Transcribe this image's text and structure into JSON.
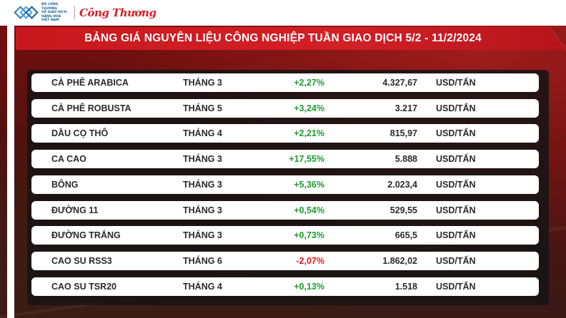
{
  "header": {
    "logo_small_text": "BỘ CÔNG THƯƠNG\nSỞ GIAO DỊCH\nHÀNG HÓA\nVIỆT NAM",
    "brand": "Công Thương"
  },
  "title": "BẢNG GIÁ NGUYÊN LIỆU CÔNG NGHIỆP TUẦN GIAO DỊCH 5/2 - 11/2/2024",
  "colors": {
    "accent_red": "#d32027",
    "positive_green": "#1e9a2e",
    "negative_red": "#e01b1b"
  },
  "rows": [
    {
      "name": "CÀ PHÊ ARABICA",
      "month": "THÁNG 3",
      "change": "+2,27%",
      "price": "4.327,67",
      "unit": "USD/TẤN",
      "direction": "pos"
    },
    {
      "name": "CÀ PHÊ ROBUSTA",
      "month": "THÁNG 5",
      "change": "+3,24%",
      "price": "3.217",
      "unit": "USD/TẤN",
      "direction": "pos"
    },
    {
      "name": "DẦU CỌ THÔ",
      "month": "THÁNG 4",
      "change": "+2,21%",
      "price": "815,97",
      "unit": "USD/TẤN",
      "direction": "pos"
    },
    {
      "name": "CA CAO",
      "month": "THÁNG 3",
      "change": "+17,55%",
      "price": "5.888",
      "unit": "USD/TẤN",
      "direction": "pos"
    },
    {
      "name": "BÔNG",
      "month": "THÁNG 3",
      "change": "+5,36%",
      "price": "2.023,4",
      "unit": "USD/TẤN",
      "direction": "pos"
    },
    {
      "name": "ĐƯỜNG 11",
      "month": "THÁNG 3",
      "change": "+0,54%",
      "price": "529,55",
      "unit": "USD/TẤN",
      "direction": "pos"
    },
    {
      "name": "ĐƯỜNG TRẮNG",
      "month": "THÁNG 3",
      "change": "+0,73%",
      "price": "665,5",
      "unit": "USD/TẤN",
      "direction": "pos"
    },
    {
      "name": "CAO SU RSS3",
      "month": "THÁNG 6",
      "change": "-2,07%",
      "price": "1.862,02",
      "unit": "USD/TẤN",
      "direction": "neg"
    },
    {
      "name": "CAO SU TSR20",
      "month": "THÁNG 4",
      "change": "+0,13%",
      "price": "1.518",
      "unit": "USD/TẤN",
      "direction": "pos"
    }
  ]
}
